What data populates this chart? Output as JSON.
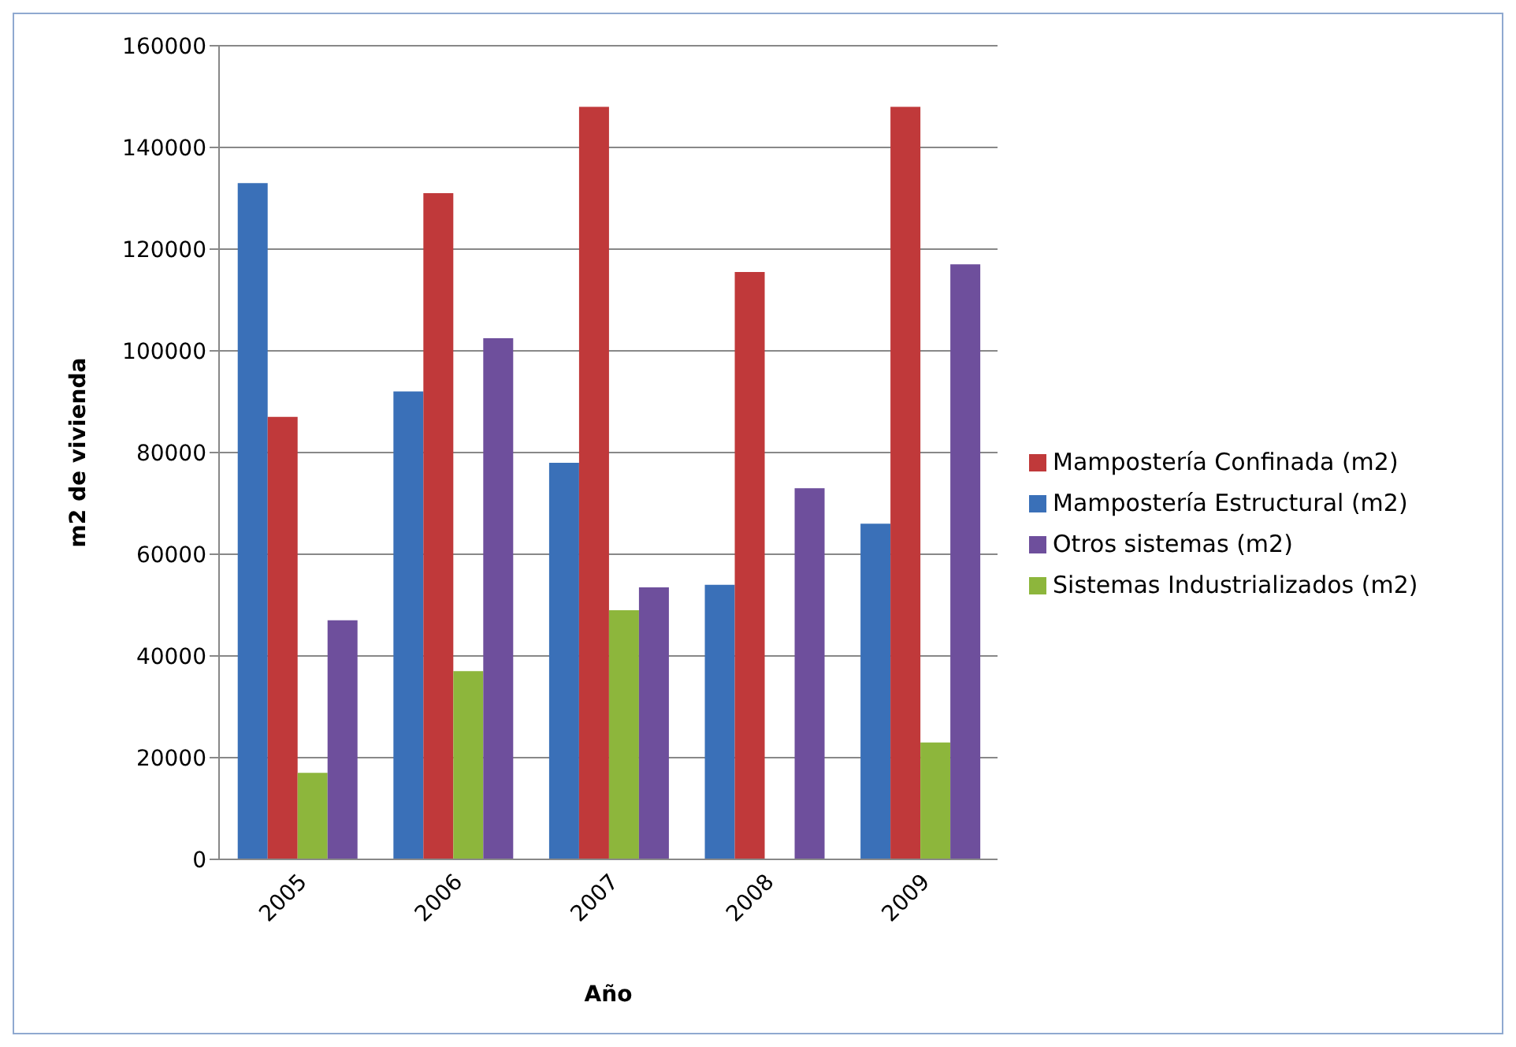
{
  "chart_data": {
    "type": "bar",
    "xlabel": "Año",
    "ylabel": "m2 de vivienda",
    "categories": [
      "2005",
      "2006",
      "2007",
      "2008",
      "2009"
    ],
    "series": [
      {
        "name": "Mampostería Estructural (m2)",
        "color": "#3a70b8",
        "values": [
          133000,
          92000,
          78000,
          54000,
          66000
        ]
      },
      {
        "name": "Mampostería Confinada (m2)",
        "color": "#c0393a",
        "values": [
          87000,
          131000,
          148000,
          115500,
          148000
        ]
      },
      {
        "name": "Sistemas Industrializados (m2)",
        "color": "#8db63c",
        "values": [
          17000,
          37000,
          49000,
          null,
          23000
        ]
      },
      {
        "name": "Otros sistemas (m2)",
        "color": "#6e4f9c",
        "values": [
          47000,
          102500,
          53500,
          73000,
          117000
        ]
      }
    ],
    "ylim": [
      0,
      160000
    ],
    "yticks": [
      0,
      20000,
      40000,
      60000,
      80000,
      100000,
      120000,
      140000,
      160000
    ],
    "grid": "y",
    "legend": "right"
  }
}
